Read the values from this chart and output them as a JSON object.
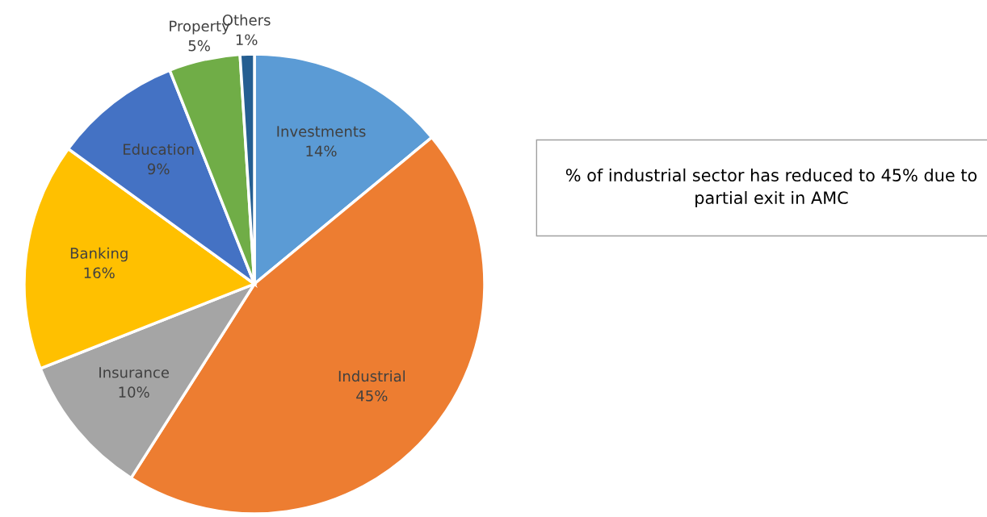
{
  "chart_data": {
    "type": "pie",
    "categories": [
      "Investments",
      "Industrial",
      "Insurance",
      "Banking",
      "Education",
      "Property",
      "Others"
    ],
    "values": [
      14,
      45,
      10,
      16,
      9,
      5,
      1
    ],
    "colors": [
      "#5b9bd5",
      "#ed7d31",
      "#a5a5a5",
      "#ffc000",
      "#4472c4",
      "#70ad47",
      "#255e91"
    ],
    "value_labels": [
      "14%",
      "45%",
      "10%",
      "16%",
      "9%",
      "5%",
      "1%"
    ],
    "legend": false,
    "annotations": [
      "% of industrial sector has reduced to 45% due to partial exit in AMC"
    ]
  }
}
